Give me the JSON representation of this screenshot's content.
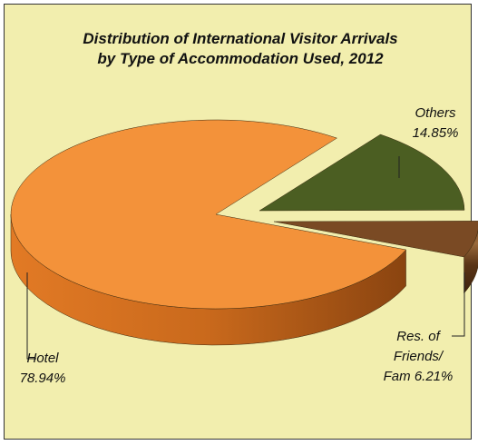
{
  "chart_data": {
    "type": "pie3d",
    "title": "Distribution of International Visitor Arrivals\nby Type of Accommodation Used, 2012",
    "categories": [
      "Hotel",
      "Others",
      "Res. of Friends/ Fam"
    ],
    "values": [
      78.94,
      14.85,
      6.21
    ],
    "value_labels": [
      "78.94%",
      "14.85%",
      "6.21%"
    ],
    "colors": [
      "#f3923a",
      "#4b5e22",
      "#7a4a24"
    ]
  }
}
